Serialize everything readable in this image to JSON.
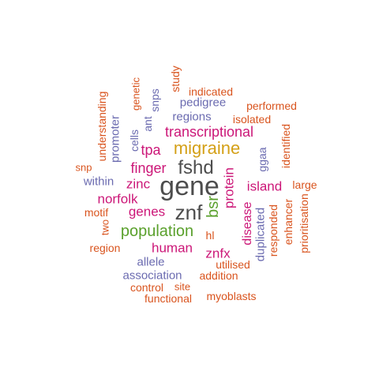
{
  "colors": {
    "gray": "#4d4d4d",
    "gold": "#d4a017",
    "green": "#5aa02c",
    "magenta": "#cc1778",
    "purple": "#6b6bb0",
    "orange": "#d9541e"
  },
  "words": [
    {
      "text": "gene",
      "color": "gray"
    },
    {
      "text": "fshd",
      "color": "gray"
    },
    {
      "text": "znf",
      "color": "gray"
    },
    {
      "text": "migraine",
      "color": "gold"
    },
    {
      "text": "population",
      "color": "green"
    },
    {
      "text": "bsr",
      "color": "green"
    },
    {
      "text": "transcriptional",
      "color": "magenta"
    },
    {
      "text": "finger",
      "color": "magenta"
    },
    {
      "text": "tpa",
      "color": "magenta"
    },
    {
      "text": "zinc",
      "color": "magenta"
    },
    {
      "text": "norfolk",
      "color": "magenta"
    },
    {
      "text": "genes",
      "color": "magenta"
    },
    {
      "text": "island",
      "color": "magenta"
    },
    {
      "text": "protein",
      "color": "magenta"
    },
    {
      "text": "human",
      "color": "magenta"
    },
    {
      "text": "znfx",
      "color": "magenta"
    },
    {
      "text": "disease",
      "color": "magenta"
    },
    {
      "text": "pedigree",
      "color": "purple"
    },
    {
      "text": "regions",
      "color": "purple"
    },
    {
      "text": "promoter",
      "color": "purple"
    },
    {
      "text": "cells",
      "color": "purple"
    },
    {
      "text": "ant",
      "color": "purple"
    },
    {
      "text": "snps",
      "color": "purple"
    },
    {
      "text": "within",
      "color": "purple"
    },
    {
      "text": "ggaa",
      "color": "purple"
    },
    {
      "text": "duplicated",
      "color": "purple"
    },
    {
      "text": "allele",
      "color": "purple"
    },
    {
      "text": "association",
      "color": "purple"
    },
    {
      "text": "indicated",
      "color": "orange"
    },
    {
      "text": "study",
      "color": "orange"
    },
    {
      "text": "genetic",
      "color": "orange"
    },
    {
      "text": "understanding",
      "color": "orange"
    },
    {
      "text": "performed",
      "color": "orange"
    },
    {
      "text": "isolated",
      "color": "orange"
    },
    {
      "text": "identified",
      "color": "orange"
    },
    {
      "text": "snp",
      "color": "orange"
    },
    {
      "text": "large",
      "color": "orange"
    },
    {
      "text": "motif",
      "color": "orange"
    },
    {
      "text": "two",
      "color": "orange"
    },
    {
      "text": "enhancer",
      "color": "orange"
    },
    {
      "text": "responded",
      "color": "orange"
    },
    {
      "text": "prioritisation",
      "color": "orange"
    },
    {
      "text": "hl",
      "color": "orange"
    },
    {
      "text": "region",
      "color": "orange"
    },
    {
      "text": "utilised",
      "color": "orange"
    },
    {
      "text": "addition",
      "color": "orange"
    },
    {
      "text": "site",
      "color": "orange"
    },
    {
      "text": "control",
      "color": "orange"
    },
    {
      "text": "functional",
      "color": "orange"
    },
    {
      "text": "myoblasts",
      "color": "orange"
    }
  ]
}
